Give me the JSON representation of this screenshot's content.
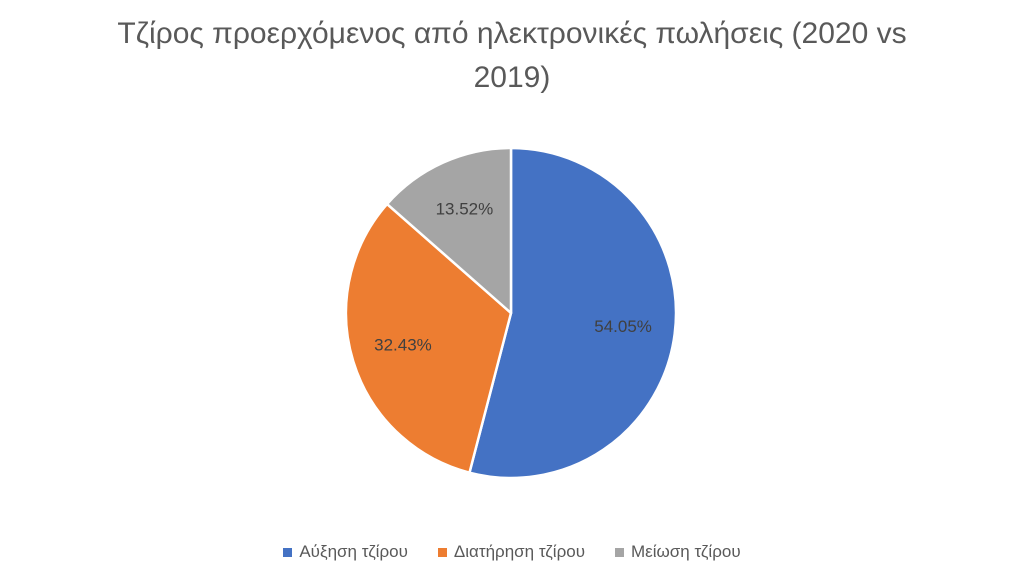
{
  "chart_data": {
    "type": "pie",
    "title_lines": [
      "Τζίρος προερχόμενος από ηλεκτρονικές πωλήσεις (2020 vs",
      "2019)"
    ],
    "categories": [
      "Αύξηση τζίρου",
      "Διατήρηση τζίρου",
      "Μείωση τζίρου"
    ],
    "values": [
      54.05,
      32.43,
      13.52
    ],
    "value_labels": [
      "54.05%",
      "32.43%",
      "13.52%"
    ],
    "colors": [
      "#4472C4",
      "#ED7D31",
      "#A5A5A5"
    ],
    "legend_position": "bottom"
  }
}
